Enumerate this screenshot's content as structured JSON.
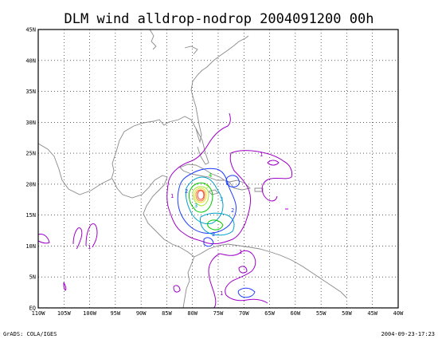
{
  "title": "DLM wind alldrop-nodrop 2004091200 00h",
  "footer_left": "GrADS: COLA/IGES",
  "footer_right": "2004-09-23-17:23",
  "lon_labels": [
    "110W",
    "105W",
    "100W",
    "95W",
    "90W",
    "85W",
    "80W",
    "75W",
    "70W",
    "65W",
    "60W",
    "55W",
    "50W",
    "45W",
    "40W"
  ],
  "lat_labels": [
    "EQ",
    "5N",
    "10N",
    "15N",
    "20N",
    "25N",
    "30N",
    "35N",
    "40N",
    "45N"
  ],
  "map_extent": {
    "lon": [
      -110,
      -40
    ],
    "lat": [
      0,
      45
    ]
  },
  "contour_colors": {
    "c1": "#a000c8",
    "c2": "#1e3cff",
    "c3": "#00a0c8",
    "c4": "#00c800",
    "c5": "#a0e632",
    "c6": "#e6dc32",
    "c7": "#f08228",
    "c8": "#fa3c3c"
  },
  "contour_labels": [
    "1",
    "1",
    "1",
    "1",
    "1",
    "2",
    "2",
    "2",
    "2",
    "3",
    "3",
    "4",
    "5"
  ]
}
